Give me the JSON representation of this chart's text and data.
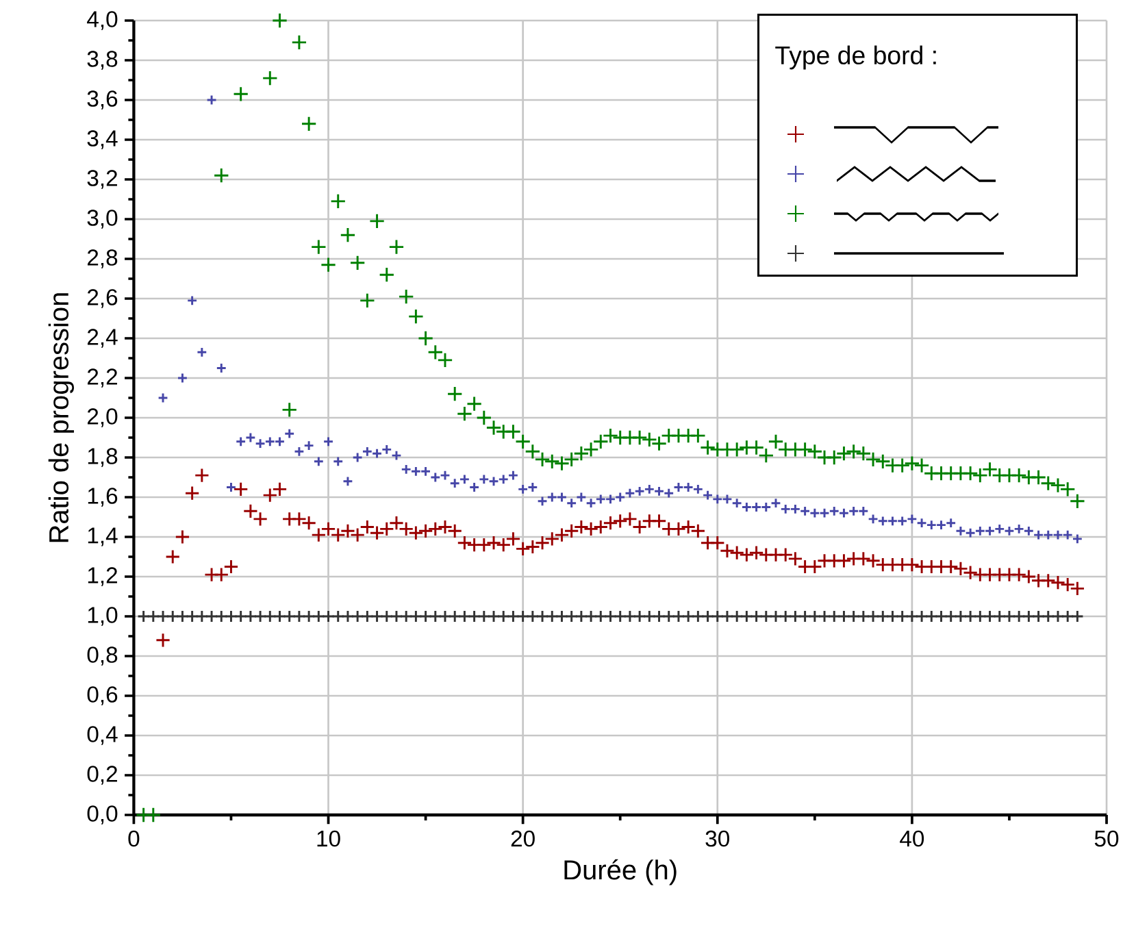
{
  "chart_data": {
    "type": "scatter",
    "xlabel": "Durée (h)",
    "ylabel": "Ratio de progression",
    "legend_title": "Type de bord :",
    "marker": "cross",
    "grid": true,
    "xlim": [
      0,
      50
    ],
    "xticks": [
      0,
      10,
      20,
      30,
      40,
      50
    ],
    "ylim": [
      0,
      4
    ],
    "yticks": [
      {
        "value": 0,
        "label": "0,0"
      },
      {
        "value": 0.2,
        "label": "0,2"
      },
      {
        "value": 0.4,
        "label": "0,4"
      },
      {
        "value": 0.6,
        "label": "0,6"
      },
      {
        "value": 0.8,
        "label": "0,8"
      },
      {
        "value": 1.0,
        "label": "1,0"
      },
      {
        "value": 1.2,
        "label": "1,2"
      },
      {
        "value": 1.4,
        "label": "1,4"
      },
      {
        "value": 1.6,
        "label": "1,6"
      },
      {
        "value": 1.8,
        "label": "1,8"
      },
      {
        "value": 2.0,
        "label": "2,0"
      },
      {
        "value": 2.2,
        "label": "2,2"
      },
      {
        "value": 2.4,
        "label": "2,4"
      },
      {
        "value": 2.6,
        "label": "2,6"
      },
      {
        "value": 2.8,
        "label": "2,8"
      },
      {
        "value": 3.0,
        "label": "3,0"
      },
      {
        "value": 3.2,
        "label": "3,2"
      },
      {
        "value": 3.4,
        "label": "3,4"
      },
      {
        "value": 3.6,
        "label": "3,6"
      },
      {
        "value": 3.8,
        "label": "3,8"
      },
      {
        "value": 4.0,
        "label": "4,0"
      }
    ],
    "series": [
      {
        "color": "#990000",
        "x": [
          1.5,
          2,
          2.5,
          3,
          3.5,
          4,
          4.5,
          5,
          5.5,
          6,
          6.5,
          7,
          7.5,
          8,
          8.5,
          9,
          9.5,
          10,
          10.5,
          11,
          11.5,
          12,
          12.5,
          13,
          13.5,
          14,
          14.5,
          15,
          15.5,
          16,
          16.5,
          17,
          17.5,
          18,
          18.5,
          19,
          19.5,
          20,
          20.5,
          21,
          21.5,
          22,
          22.5,
          23,
          23.5,
          24,
          24.5,
          25,
          25.5,
          26,
          26.5,
          27,
          27.5,
          28,
          28.5,
          29,
          29.5,
          30,
          30.5,
          31,
          31.5,
          32,
          32.5,
          33,
          33.5,
          34,
          34.5,
          35,
          35.5,
          36,
          36.5,
          37,
          37.5,
          38,
          38.5,
          39,
          39.5,
          40,
          40.5,
          41,
          41.5,
          42,
          42.5,
          43,
          43.5,
          44,
          44.5,
          45,
          45.5,
          46,
          46.5,
          47,
          47.5,
          48,
          48.5
        ],
        "values": [
          0.88,
          1.3,
          1.4,
          1.62,
          1.71,
          1.21,
          1.21,
          1.25,
          1.64,
          1.53,
          1.49,
          1.61,
          1.64,
          1.49,
          1.49,
          1.47,
          1.41,
          1.44,
          1.41,
          1.43,
          1.41,
          1.45,
          1.42,
          1.44,
          1.47,
          1.44,
          1.42,
          1.43,
          1.44,
          1.45,
          1.43,
          1.37,
          1.36,
          1.36,
          1.37,
          1.36,
          1.39,
          1.34,
          1.35,
          1.37,
          1.39,
          1.41,
          1.43,
          1.45,
          1.44,
          1.45,
          1.47,
          1.48,
          1.49,
          1.45,
          1.48,
          1.48,
          1.44,
          1.44,
          1.45,
          1.43,
          1.37,
          1.37,
          1.33,
          1.32,
          1.31,
          1.32,
          1.31,
          1.31,
          1.31,
          1.29,
          1.25,
          1.25,
          1.28,
          1.28,
          1.28,
          1.29,
          1.29,
          1.28,
          1.26,
          1.26,
          1.26,
          1.26,
          1.25,
          1.25,
          1.25,
          1.25,
          1.24,
          1.22,
          1.21,
          1.21,
          1.21,
          1.21,
          1.21,
          1.2,
          1.18,
          1.18,
          1.17,
          1.16,
          1.14
        ]
      },
      {
        "color": "#4646a8",
        "x": [
          1.5,
          2.5,
          3,
          3.5,
          4,
          4.5,
          5,
          5.5,
          6,
          6.5,
          7,
          7.5,
          8,
          8.5,
          9,
          9.5,
          10,
          10.5,
          11,
          11.5,
          12,
          12.5,
          13,
          13.5,
          14,
          14.5,
          15,
          15.5,
          16,
          16.5,
          17,
          17.5,
          18,
          18.5,
          19,
          19.5,
          20,
          20.5,
          21,
          21.5,
          22,
          22.5,
          23,
          23.5,
          24,
          24.5,
          25,
          25.5,
          26,
          26.5,
          27,
          27.5,
          28,
          28.5,
          29,
          29.5,
          30,
          30.5,
          31,
          31.5,
          32,
          32.5,
          33,
          33.5,
          34,
          34.5,
          35,
          35.5,
          36,
          36.5,
          37,
          37.5,
          38,
          38.5,
          39,
          39.5,
          40,
          40.5,
          41,
          41.5,
          42,
          42.5,
          43,
          43.5,
          44,
          44.5,
          45,
          45.5,
          46,
          46.5,
          47,
          47.5,
          48,
          48.5
        ],
        "values": [
          2.1,
          2.2,
          2.59,
          2.33,
          3.6,
          2.25,
          1.65,
          1.88,
          1.9,
          1.87,
          1.88,
          1.88,
          1.92,
          1.83,
          1.86,
          1.78,
          1.88,
          1.78,
          1.68,
          1.8,
          1.83,
          1.82,
          1.84,
          1.81,
          1.74,
          1.73,
          1.73,
          1.7,
          1.71,
          1.67,
          1.69,
          1.65,
          1.69,
          1.68,
          1.69,
          1.71,
          1.64,
          1.65,
          1.58,
          1.6,
          1.6,
          1.57,
          1.6,
          1.57,
          1.59,
          1.59,
          1.6,
          1.62,
          1.63,
          1.64,
          1.63,
          1.62,
          1.65,
          1.65,
          1.64,
          1.61,
          1.59,
          1.59,
          1.57,
          1.55,
          1.55,
          1.55,
          1.57,
          1.54,
          1.54,
          1.53,
          1.52,
          1.52,
          1.53,
          1.52,
          1.53,
          1.53,
          1.49,
          1.48,
          1.48,
          1.48,
          1.49,
          1.47,
          1.46,
          1.46,
          1.47,
          1.43,
          1.42,
          1.43,
          1.43,
          1.44,
          1.43,
          1.44,
          1.43,
          1.41,
          1.41,
          1.41,
          1.41,
          1.39
        ]
      },
      {
        "color": "#008000",
        "x": [
          0.5,
          1,
          4.5,
          5.5,
          7,
          7.5,
          8,
          8.5,
          9,
          9.5,
          10,
          10.5,
          11,
          11.5,
          12,
          12.5,
          13,
          13.5,
          14,
          14.5,
          15,
          15.5,
          16,
          16.5,
          17,
          17.5,
          18,
          18.5,
          19,
          19.5,
          20,
          20.5,
          21,
          21.5,
          22,
          22.5,
          23,
          23.5,
          24,
          24.5,
          25,
          25.5,
          26,
          26.5,
          27,
          27.5,
          28,
          28.5,
          29,
          29.5,
          30,
          30.5,
          31,
          31.5,
          32,
          32.5,
          33,
          33.5,
          34,
          34.5,
          35,
          35.5,
          36,
          36.5,
          37,
          37.5,
          38,
          38.5,
          39,
          39.5,
          40,
          40.5,
          41,
          41.5,
          42,
          42.5,
          43,
          43.5,
          44,
          44.5,
          45,
          45.5,
          46,
          46.5,
          47,
          47.5,
          48,
          48.5
        ],
        "values": [
          0,
          0,
          3.22,
          3.63,
          3.71,
          4.0,
          2.04,
          3.89,
          3.48,
          2.86,
          2.77,
          3.09,
          2.92,
          2.78,
          2.59,
          2.99,
          2.72,
          2.86,
          2.61,
          2.51,
          2.4,
          2.33,
          2.29,
          2.12,
          2.02,
          2.07,
          2.0,
          1.95,
          1.93,
          1.93,
          1.88,
          1.83,
          1.79,
          1.78,
          1.77,
          1.79,
          1.82,
          1.84,
          1.88,
          1.91,
          1.9,
          1.9,
          1.9,
          1.89,
          1.87,
          1.91,
          1.91,
          1.91,
          1.91,
          1.85,
          1.84,
          1.84,
          1.84,
          1.85,
          1.85,
          1.81,
          1.88,
          1.84,
          1.84,
          1.84,
          1.83,
          1.8,
          1.8,
          1.82,
          1.83,
          1.82,
          1.79,
          1.78,
          1.76,
          1.76,
          1.77,
          1.76,
          1.72,
          1.72,
          1.72,
          1.72,
          1.72,
          1.71,
          1.74,
          1.71,
          1.71,
          1.71,
          1.7,
          1.7,
          1.67,
          1.66,
          1.64,
          1.58
        ]
      },
      {
        "color": "#333333",
        "x": [
          0.5,
          1,
          1.5,
          2,
          2.5,
          3,
          3.5,
          4,
          4.5,
          5,
          5.5,
          6,
          6.5,
          7,
          7.5,
          8,
          8.5,
          9,
          9.5,
          10,
          10.5,
          11,
          11.5,
          12,
          12.5,
          13,
          13.5,
          14,
          14.5,
          15,
          15.5,
          16,
          16.5,
          17,
          17.5,
          18,
          18.5,
          19,
          19.5,
          20,
          20.5,
          21,
          21.5,
          22,
          22.5,
          23,
          23.5,
          24,
          24.5,
          25,
          25.5,
          26,
          26.5,
          27,
          27.5,
          28,
          28.5,
          29,
          29.5,
          30,
          30.5,
          31,
          31.5,
          32,
          32.5,
          33,
          33.5,
          34,
          34.5,
          35,
          35.5,
          36,
          36.5,
          37,
          37.5,
          38,
          38.5,
          39,
          39.5,
          40,
          40.5,
          41,
          41.5,
          42,
          42.5,
          43,
          43.5,
          44,
          44.5,
          45,
          45.5,
          46,
          46.5,
          47,
          47.5,
          48,
          48.5
        ],
        "values": [
          1,
          1,
          1,
          1,
          1,
          1,
          1,
          1,
          1,
          1,
          1,
          1,
          1,
          1,
          1,
          1,
          1,
          1,
          1,
          1,
          1,
          1,
          1,
          1,
          1,
          1,
          1,
          1,
          1,
          1,
          1,
          1,
          1,
          1,
          1,
          1,
          1,
          1,
          1,
          1,
          1,
          1,
          1,
          1,
          1,
          1,
          1,
          1,
          1,
          1,
          1,
          1,
          1,
          1,
          1,
          1,
          1,
          1,
          1,
          1,
          1,
          1,
          1,
          1,
          1,
          1,
          1,
          1,
          1,
          1,
          1,
          1,
          1,
          1,
          1,
          1,
          1,
          1,
          1,
          1,
          1,
          1,
          1,
          1,
          1,
          1,
          1,
          1,
          1,
          1,
          1,
          1,
          1,
          1,
          1,
          1,
          1
        ]
      }
    ]
  }
}
